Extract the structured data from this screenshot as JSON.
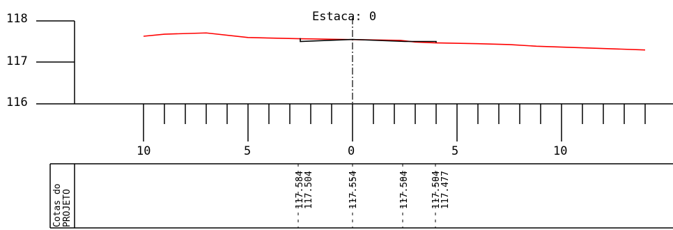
{
  "title": "Estaca:  0",
  "y_axis": {
    "ticks": [
      "118",
      "117",
      "116"
    ]
  },
  "x_axis": {
    "ticks": [
      "10",
      "5",
      "0",
      "5",
      "10"
    ]
  },
  "table": {
    "label_line1": "Cotas  do",
    "label_line2": "PROJETO",
    "cotas": [
      "117.584",
      "117.504",
      "117.554",
      "117.504",
      "117.504",
      "117.477"
    ]
  },
  "colors": {
    "terrain": "#ff0000",
    "project": "#000000",
    "axis": "#000000"
  },
  "chart_data": {
    "type": "line",
    "ylim": [
      116,
      118
    ],
    "xlim": [
      -10,
      14
    ],
    "series": [
      {
        "color": "#ff0000",
        "points": [
          [
            -10,
            117.63
          ],
          [
            -9,
            117.68
          ],
          [
            -7,
            117.71
          ],
          [
            -5,
            117.6
          ],
          [
            -2.5,
            117.57
          ],
          [
            0,
            117.55
          ],
          [
            2.3,
            117.53
          ],
          [
            3,
            117.49
          ],
          [
            4,
            117.47
          ],
          [
            6,
            117.45
          ],
          [
            7.5,
            117.43
          ],
          [
            8.8,
            117.39
          ],
          [
            14,
            117.3
          ]
        ]
      },
      {
        "color": "#000000",
        "points": [
          [
            -2.5,
            117.584
          ],
          [
            -2.5,
            117.504
          ],
          [
            0,
            117.554
          ],
          [
            2.5,
            117.504
          ],
          [
            4,
            117.504
          ],
          [
            4,
            117.477
          ]
        ]
      }
    ]
  }
}
